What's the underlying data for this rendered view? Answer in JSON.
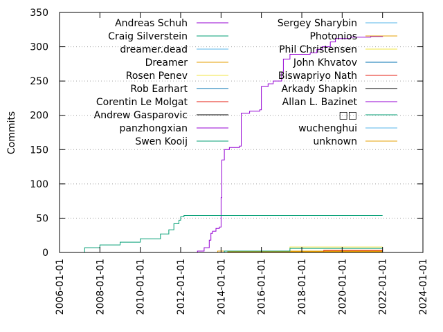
{
  "chart_data": {
    "type": "line",
    "xlabel": "",
    "ylabel": "Commits",
    "xlim": [
      "2006-01-01",
      "2024-01-01"
    ],
    "ylim": [
      0,
      350
    ],
    "x_ticks": [
      "2006-01-01",
      "2008-01-01",
      "2010-01-01",
      "2012-01-01",
      "2014-01-01",
      "2016-01-01",
      "2018-01-01",
      "2020-01-01",
      "2022-01-01",
      "2024-01-01"
    ],
    "y_ticks": [
      0,
      50,
      100,
      150,
      200,
      250,
      300,
      350
    ],
    "grid": "horizontal dotted",
    "legend_placement": "top",
    "series": [
      {
        "name": "Andreas Schuh",
        "color": "#9400d3",
        "points": [
          [
            "2012-01-01",
            0
          ],
          [
            "2012-11-01",
            2
          ],
          [
            "2013-03-01",
            7
          ],
          [
            "2013-06-01",
            18
          ],
          [
            "2013-07-01",
            28
          ],
          [
            "2013-08-01",
            31
          ],
          [
            "2013-10-01",
            35
          ],
          [
            "2013-12-01",
            37
          ],
          [
            "2014-01-01",
            80
          ],
          [
            "2014-01-15",
            135
          ],
          [
            "2014-03-01",
            150
          ],
          [
            "2014-06-01",
            153
          ],
          [
            "2014-12-01",
            155
          ],
          [
            "2015-01-01",
            203
          ],
          [
            "2015-06-01",
            206
          ],
          [
            "2015-12-01",
            208
          ],
          [
            "2016-01-01",
            242
          ],
          [
            "2016-05-01",
            246
          ],
          [
            "2016-08-01",
            250
          ],
          [
            "2017-01-01",
            263
          ],
          [
            "2017-02-01",
            282
          ],
          [
            "2017-06-01",
            289
          ],
          [
            "2018-06-01",
            291
          ],
          [
            "2018-10-01",
            296
          ],
          [
            "2019-01-01",
            300
          ],
          [
            "2019-06-01",
            307
          ],
          [
            "2019-09-01",
            312
          ],
          [
            "2020-06-01",
            314
          ],
          [
            "2021-06-01",
            315
          ],
          [
            "2022-01-01",
            316
          ]
        ]
      },
      {
        "name": "Craig Silverstein",
        "color": "#009e73",
        "points": [
          [
            "2007-03-01",
            0
          ],
          [
            "2007-04-01",
            7
          ],
          [
            "2008-01-01",
            11
          ],
          [
            "2009-01-01",
            15
          ],
          [
            "2010-01-01",
            20
          ],
          [
            "2011-01-01",
            27
          ],
          [
            "2011-06-01",
            33
          ],
          [
            "2011-09-01",
            42
          ],
          [
            "2011-12-01",
            47
          ],
          [
            "2012-01-01",
            52
          ],
          [
            "2012-03-01",
            54
          ],
          [
            "2022-01-01",
            54
          ]
        ]
      },
      {
        "name": "dreamer.dead",
        "color": "#56b4e9",
        "points": [
          [
            "2014-01-01",
            0
          ],
          [
            "2022-01-01",
            0
          ]
        ]
      },
      {
        "name": "Dreamer",
        "color": "#e69f00",
        "points": [
          [
            "2013-10-01",
            0
          ],
          [
            "2013-11-01",
            2
          ],
          [
            "2022-01-01",
            2
          ]
        ]
      },
      {
        "name": "Rosen Penev",
        "color": "#f0e442",
        "points": [
          [
            "2017-05-01",
            0
          ],
          [
            "2017-06-01",
            8
          ],
          [
            "2022-01-01",
            8
          ]
        ]
      },
      {
        "name": "Rob Earhart",
        "color": "#0072b2",
        "points": [
          [
            "2014-06-01",
            0
          ],
          [
            "2022-01-01",
            0
          ]
        ]
      },
      {
        "name": "Corentin Le Molgat",
        "color": "#e51e10",
        "points": [
          [
            "2019-01-01",
            0
          ],
          [
            "2019-02-01",
            3
          ],
          [
            "2022-01-01",
            3
          ]
        ]
      },
      {
        "name": "Andrew Gasparovic",
        "color": "#000000",
        "points": [
          [
            "2014-01-01",
            0
          ],
          [
            "2022-01-01",
            0
          ]
        ]
      },
      {
        "name": "panzhongxian",
        "color": "#9400d3",
        "points": [
          [
            "2019-06-01",
            0
          ],
          [
            "2022-01-01",
            0
          ]
        ]
      },
      {
        "name": "Swen Kooij",
        "color": "#009e73",
        "points": [
          [
            "2014-02-01",
            0
          ],
          [
            "2014-03-01",
            2
          ],
          [
            "2017-05-01",
            2
          ],
          [
            "2017-06-01",
            6
          ],
          [
            "2022-01-01",
            6
          ]
        ]
      },
      {
        "name": "Sergey Sharybin",
        "color": "#56b4e9",
        "points": [
          [
            "2014-01-01",
            0
          ],
          [
            "2022-01-01",
            0
          ]
        ]
      },
      {
        "name": "Photonios",
        "color": "#e69f00",
        "points": [
          [
            "2014-04-01",
            0
          ],
          [
            "2014-05-01",
            1
          ],
          [
            "2022-01-01",
            1
          ]
        ]
      },
      {
        "name": "Phil Christensen",
        "color": "#f0e442",
        "points": [
          [
            "2015-01-01",
            0
          ],
          [
            "2022-01-01",
            0
          ]
        ]
      },
      {
        "name": "John Khvatov",
        "color": "#0072b2",
        "points": [
          [
            "2016-01-01",
            0
          ],
          [
            "2022-01-01",
            0
          ]
        ]
      },
      {
        "name": "Biswapriyo Nath",
        "color": "#e51e10",
        "points": [
          [
            "2020-01-01",
            0
          ],
          [
            "2022-01-01",
            0
          ]
        ]
      },
      {
        "name": "Arkady Shapkin",
        "color": "#000000",
        "points": [
          [
            "2018-01-01",
            0
          ],
          [
            "2022-01-01",
            0
          ]
        ]
      },
      {
        "name": "Allan L. Bazinet",
        "color": "#9400d3",
        "points": [
          [
            "2016-01-01",
            0
          ],
          [
            "2022-01-01",
            0
          ]
        ]
      },
      {
        "name": "□□",
        "color": "#009e73",
        "points": [
          [
            "2017-01-01",
            0
          ],
          [
            "2022-01-01",
            0
          ]
        ]
      },
      {
        "name": "wuchenghui",
        "color": "#56b4e9",
        "points": [
          [
            "2020-01-01",
            0
          ],
          [
            "2022-01-01",
            0
          ]
        ]
      },
      {
        "name": "unknown",
        "color": "#e69f00",
        "points": [
          [
            "2013-10-01",
            0
          ],
          [
            "2022-01-01",
            0
          ]
        ]
      }
    ]
  }
}
